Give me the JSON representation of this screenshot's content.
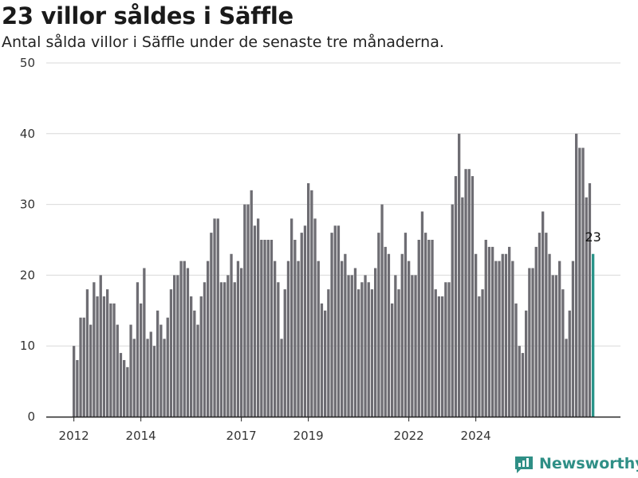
{
  "title": "23 villor såldes i Säffle",
  "subtitle": "Antal sålda villor i Säffle under de senaste tre månaderna.",
  "brand": {
    "name": "Newsworthy",
    "color": "#2f8f86"
  },
  "colors": {
    "bar": "#6e6d73",
    "highlight": "#2a9489",
    "grid": "#d9d9d9",
    "axis": "#222222"
  },
  "chart_data": {
    "type": "bar",
    "title": "23 villor såldes i Säffle",
    "subtitle": "Antal sålda villor i Säffle under de senaste tre månaderna.",
    "xlabel": "",
    "ylabel": "",
    "ylim": [
      0,
      50
    ],
    "yticks": [
      0,
      10,
      20,
      30,
      40,
      50
    ],
    "xticks": [
      {
        "label": "2012",
        "index": 0
      },
      {
        "label": "2014",
        "index": 20
      },
      {
        "label": "2017",
        "index": 50
      },
      {
        "label": "2019",
        "index": 70
      },
      {
        "label": "2022",
        "index": 100
      },
      {
        "label": "2024",
        "index": 120
      }
    ],
    "grid": true,
    "legend": "none",
    "values": [
      10,
      8,
      14,
      14,
      18,
      13,
      19,
      17,
      20,
      17,
      18,
      16,
      16,
      13,
      9,
      8,
      7,
      13,
      11,
      19,
      16,
      21,
      11,
      12,
      10,
      15,
      13,
      11,
      14,
      18,
      20,
      20,
      22,
      22,
      21,
      17,
      15,
      13,
      17,
      19,
      22,
      26,
      28,
      28,
      19,
      19,
      20,
      23,
      19,
      22,
      21,
      30,
      30,
      32,
      27,
      28,
      25,
      25,
      25,
      25,
      22,
      19,
      11,
      18,
      22,
      28,
      25,
      22,
      26,
      27,
      33,
      32,
      28,
      22,
      16,
      15,
      18,
      26,
      27,
      27,
      22,
      23,
      20,
      20,
      21,
      18,
      19,
      20,
      19,
      18,
      21,
      26,
      30,
      24,
      23,
      16,
      20,
      18,
      23,
      26,
      22,
      20,
      20,
      25,
      29,
      26,
      25,
      25,
      18,
      17,
      17,
      19,
      19,
      30,
      34,
      40,
      31,
      35,
      35,
      34,
      23,
      17,
      18,
      25,
      24,
      24,
      22,
      22,
      23,
      23,
      24,
      22,
      16,
      10,
      9,
      15,
      21,
      21,
      24,
      26,
      29,
      26,
      23,
      20,
      20,
      22,
      18,
      11,
      15,
      22,
      40,
      38,
      38,
      31,
      33,
      23
    ],
    "highlight_last": true,
    "last_value_label": "23"
  }
}
